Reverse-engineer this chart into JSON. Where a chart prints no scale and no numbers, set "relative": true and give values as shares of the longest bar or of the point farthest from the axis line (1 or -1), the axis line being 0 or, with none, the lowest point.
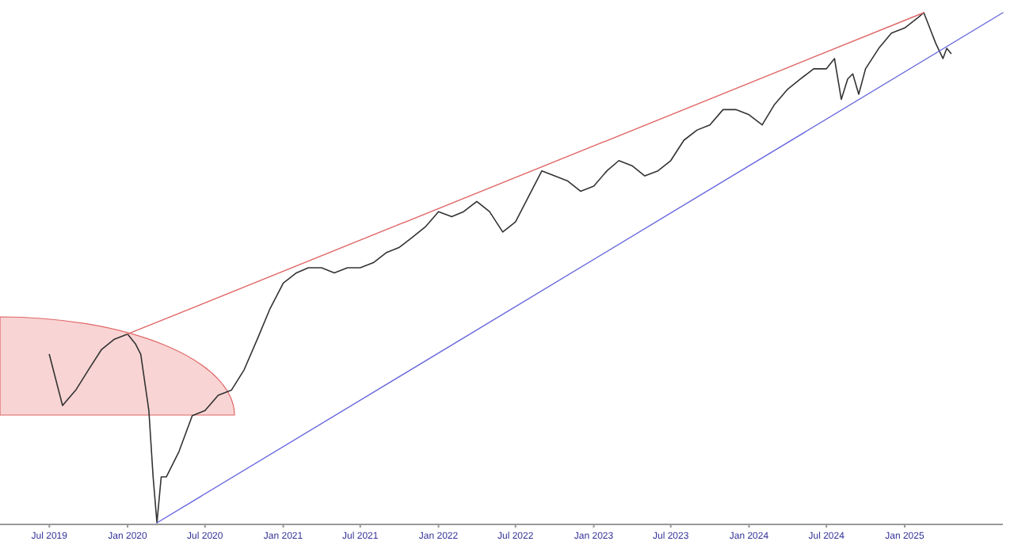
{
  "chart_data": {
    "type": "line",
    "relative": true,
    "x": [
      "2019-07-01",
      "2019-08-01",
      "2019-09-01",
      "2019-10-01",
      "2019-11-01",
      "2019-12-01",
      "2020-01-01",
      "2020-01-20",
      "2020-02-01",
      "2020-02-20",
      "2020-03-01",
      "2020-03-10",
      "2020-03-20",
      "2020-04-01",
      "2020-05-01",
      "2020-06-01",
      "2020-07-01",
      "2020-08-01",
      "2020-09-01",
      "2020-10-01",
      "2020-11-01",
      "2020-12-01",
      "2021-01-01",
      "2021-02-01",
      "2021-03-01",
      "2021-04-01",
      "2021-05-01",
      "2021-06-01",
      "2021-07-01",
      "2021-08-01",
      "2021-09-01",
      "2021-10-01",
      "2021-11-01",
      "2021-12-01",
      "2022-01-01",
      "2022-02-01",
      "2022-03-01",
      "2022-04-01",
      "2022-05-01",
      "2022-06-01",
      "2022-07-01",
      "2022-08-01",
      "2022-09-01",
      "2022-10-01",
      "2022-11-01",
      "2022-12-01",
      "2023-01-01",
      "2023-02-01",
      "2023-03-01",
      "2023-04-01",
      "2023-05-01",
      "2023-06-01",
      "2023-07-01",
      "2023-08-01",
      "2023-09-01",
      "2023-10-01",
      "2023-11-01",
      "2023-12-01",
      "2024-01-01",
      "2024-02-01",
      "2024-03-01",
      "2024-04-01",
      "2024-05-01",
      "2024-06-01",
      "2024-07-01",
      "2024-07-20",
      "2024-08-05",
      "2024-08-20",
      "2024-09-01",
      "2024-09-15",
      "2024-10-01",
      "2024-11-01",
      "2024-12-01",
      "2025-01-01",
      "2025-02-01",
      "2025-02-15",
      "2025-03-01",
      "2025-03-15",
      "2025-04-01",
      "2025-04-10",
      "2025-04-20"
    ],
    "xlim": [
      "2019-03-07",
      "2025-08-20"
    ],
    "xticks": [
      {
        "value": "2019-07-01",
        "label": "Jul 2019"
      },
      {
        "value": "2020-01-01",
        "label": "Jan 2020"
      },
      {
        "value": "2020-07-01",
        "label": "Jul 2020"
      },
      {
        "value": "2021-01-01",
        "label": "Jan 2021"
      },
      {
        "value": "2021-07-01",
        "label": "Jul 2021"
      },
      {
        "value": "2022-01-01",
        "label": "Jan 2022"
      },
      {
        "value": "2022-07-01",
        "label": "Jul 2022"
      },
      {
        "value": "2023-01-01",
        "label": "Jan 2023"
      },
      {
        "value": "2023-07-01",
        "label": "Jul 2023"
      },
      {
        "value": "2024-01-01",
        "label": "Jan 2024"
      },
      {
        "value": "2024-07-01",
        "label": "Jul 2024"
      },
      {
        "value": "2025-01-01",
        "label": "Jan 2025"
      }
    ],
    "series": [
      {
        "color": "#333333",
        "values": [
          0.33,
          0.23,
          0.26,
          0.3,
          0.34,
          0.36,
          0.37,
          0.35,
          0.33,
          0.22,
          0.09,
          0,
          0.09,
          0.09,
          0.14,
          0.21,
          0.22,
          0.25,
          0.26,
          0.3,
          0.36,
          0.42,
          0.47,
          0.49,
          0.5,
          0.5,
          0.49,
          0.5,
          0.5,
          0.51,
          0.53,
          0.54,
          0.56,
          0.58,
          0.61,
          0.6,
          0.61,
          0.63,
          0.61,
          0.57,
          0.59,
          0.64,
          0.69,
          0.68,
          0.67,
          0.65,
          0.66,
          0.69,
          0.71,
          0.7,
          0.68,
          0.69,
          0.71,
          0.75,
          0.77,
          0.78,
          0.81,
          0.81,
          0.8,
          0.78,
          0.82,
          0.85,
          0.87,
          0.89,
          0.89,
          0.91,
          0.83,
          0.87,
          0.88,
          0.84,
          0.89,
          0.93,
          0.96,
          0.97,
          0.99,
          1,
          0.97,
          0.94,
          0.91,
          0.93,
          0.92
        ]
      },
      {
        "type": "line",
        "color": "#e06666",
        "x": [
          "2020-01-01",
          "2025-02-15"
        ],
        "values": [
          0.37,
          1
        ]
      },
      {
        "type": "line",
        "color": "#6666dd",
        "x": [
          "2020-03-10",
          "2025-08-20"
        ],
        "values": [
          0,
          1
        ]
      }
    ]
  }
}
